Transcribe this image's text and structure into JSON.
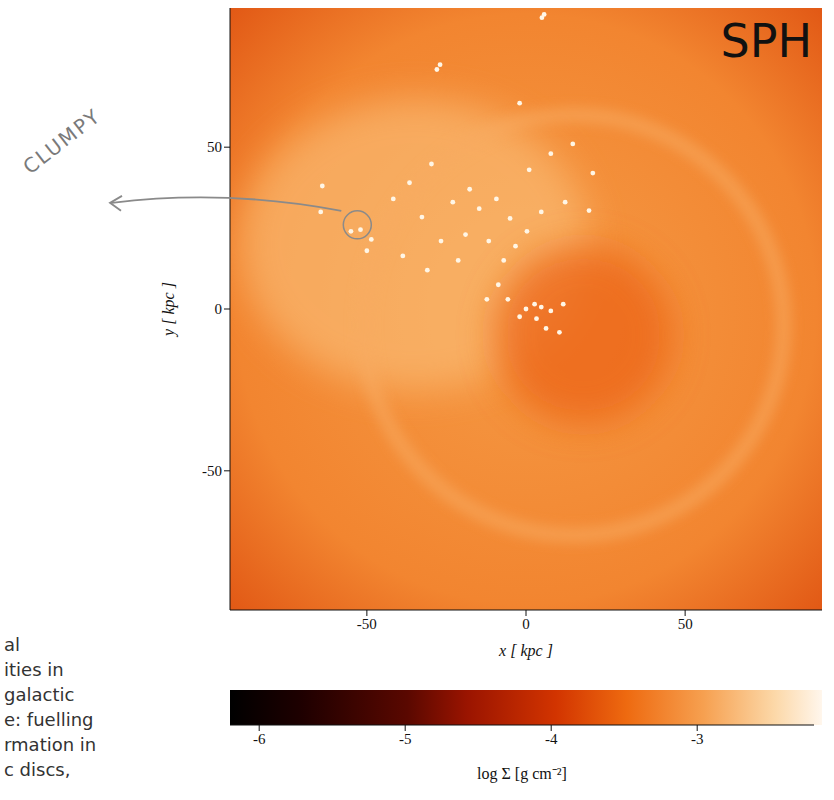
{
  "chart_data": {
    "type": "heatmap",
    "title": "SPH",
    "x_label": "x [ kpc ]",
    "y_label": "y [ kpc ]",
    "xlim": [
      -93,
      93
    ],
    "ylim": [
      -93,
      93
    ],
    "xticks": [
      -50,
      0,
      50
    ],
    "yticks": [
      -50,
      0,
      50
    ],
    "clumps": {
      "x": [
        -27,
        -28,
        5.7,
        5,
        -2,
        -64,
        -64.5,
        -52,
        -48.6,
        -55,
        -41.7,
        -36.6,
        -32.7,
        -23,
        -17.7,
        -14.7,
        -9.3,
        1,
        7.8,
        14.7,
        19.8,
        12.3,
        -5,
        -26.7,
        -19,
        -11.7,
        -21.3,
        -7,
        -3.3,
        0.3,
        4.8,
        -8.7,
        -12.3,
        -5.7,
        -2,
        0,
        2.7,
        4.8,
        7.8,
        3.3,
        6.3,
        10.5,
        11.7,
        -31,
        -38.7,
        -29.7,
        -50,
        21
      ],
      "y": [
        75.5,
        74,
        91,
        90,
        63.6,
        38,
        30,
        24.5,
        21.5,
        24,
        34,
        39,
        28.4,
        33,
        37,
        31,
        34,
        43,
        48,
        51,
        30.4,
        33,
        28,
        21,
        23,
        21,
        15,
        15,
        19.4,
        24,
        30,
        7.5,
        3,
        3,
        -2.4,
        0,
        1.5,
        0.6,
        -0.6,
        -3,
        -6,
        -7.2,
        1.5,
        12,
        16.4,
        44.8,
        18,
        42
      ]
    },
    "colorbar": {
      "label": "log Σ [g cm⁻²]",
      "range": [
        -6.2,
        -2.2
      ],
      "ticks": [
        -6,
        -5,
        -4,
        -3
      ]
    },
    "annotation": {
      "text": "CLUMPY",
      "x": -53,
      "y": 26
    }
  },
  "side_text": [
    "al",
    "ities in",
    "galactic",
    "e: fuelling",
    "rmation in",
    "c discs,"
  ]
}
